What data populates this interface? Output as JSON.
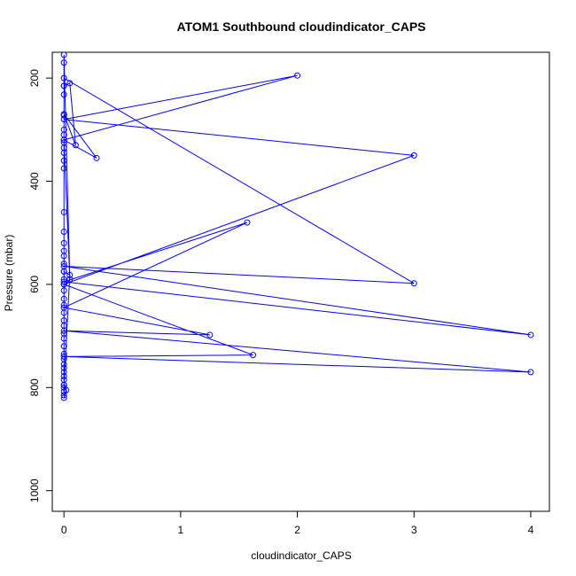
{
  "chart_data": {
    "type": "line",
    "title": "ATOM1 Southbound cloudindicator_CAPS",
    "xlabel": "cloudindicator_CAPS",
    "ylabel": "Pressure (mbar)",
    "xlim": [
      -0.1,
      4.16
    ],
    "ylim": [
      1040,
      150
    ],
    "y_reversed": true,
    "xticks": [
      0,
      1,
      2,
      3,
      4
    ],
    "yticks": [
      200,
      400,
      600,
      800,
      1000
    ],
    "color": "#0000ff",
    "marker": "open-circle",
    "series": [
      {
        "x": [
          0,
          0.02,
          0,
          0.05,
          0,
          0,
          0.05,
          0.1,
          0,
          0.28,
          0,
          2.0,
          0,
          3.0,
          0,
          1.62,
          0,
          4.0,
          0,
          1.25,
          0,
          1.57,
          0,
          4.0,
          0,
          3.0,
          0,
          0,
          0.05,
          0,
          0,
          0,
          0,
          0,
          0,
          0,
          0,
          0,
          0,
          0,
          0,
          0,
          0,
          0,
          0,
          0,
          0,
          0,
          0,
          0,
          0,
          0,
          0,
          0,
          0,
          0,
          0,
          0,
          0,
          0,
          0,
          0,
          0,
          0,
          0,
          0,
          0,
          0,
          0,
          0
        ],
        "y": [
          820,
          805,
          795,
          582,
          575,
          215,
          210,
          330,
          270,
          355,
          320,
          195,
          280,
          350,
          600,
          737,
          740,
          770,
          690,
          698,
          645,
          480,
          595,
          698,
          565,
          598,
          200,
          320,
          590,
          155,
          170,
          215,
          232,
          272,
          300,
          310,
          325,
          335,
          345,
          360,
          375,
          460,
          498,
          520,
          535,
          545,
          560,
          575,
          590,
          600,
          612,
          628,
          640,
          655,
          670,
          680,
          695,
          705,
          720,
          735,
          745,
          755,
          762,
          770,
          778,
          785,
          795,
          800,
          808,
          815
        ]
      }
    ]
  }
}
